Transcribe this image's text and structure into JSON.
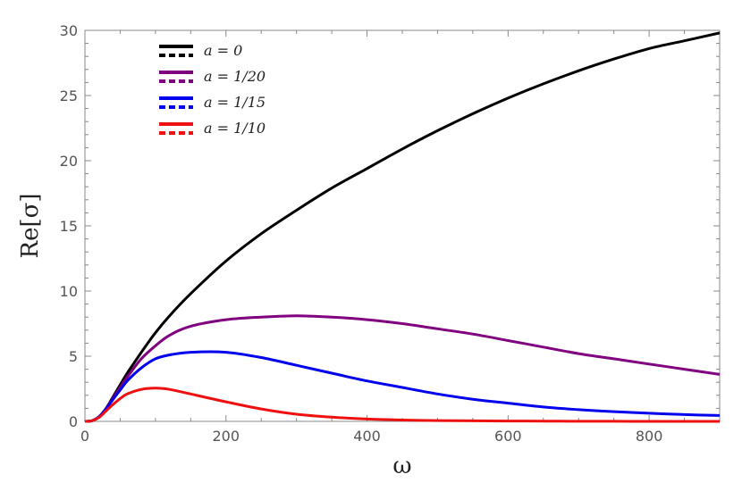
{
  "chart_data": {
    "type": "line",
    "xlabel": "ω",
    "ylabel": "Re[σ]",
    "xlim": [
      0,
      900
    ],
    "ylim": [
      0,
      30
    ],
    "xticks": [
      0,
      200,
      400,
      600,
      800
    ],
    "yticks": [
      0,
      5,
      10,
      15,
      20,
      25,
      30
    ],
    "grid": false,
    "legend_position": "top-left",
    "x": [
      0,
      10,
      20,
      30,
      40,
      50,
      60,
      80,
      100,
      120,
      150,
      200,
      250,
      300,
      350,
      400,
      450,
      500,
      550,
      600,
      650,
      700,
      750,
      800,
      850,
      900
    ],
    "series": [
      {
        "name": "a = 0",
        "color": "#000000",
        "values": [
          0,
          0.05,
          0.35,
          1.0,
          1.9,
          2.8,
          3.7,
          5.3,
          6.8,
          8.1,
          9.8,
          12.3,
          14.4,
          16.2,
          17.9,
          19.4,
          20.9,
          22.3,
          23.6,
          24.8,
          25.9,
          26.9,
          27.8,
          28.6,
          29.2,
          29.8
        ]
      },
      {
        "name": "a = 1/20",
        "color": "#800080",
        "values": [
          0,
          0.05,
          0.35,
          1.0,
          1.8,
          2.6,
          3.4,
          4.8,
          5.8,
          6.6,
          7.3,
          7.8,
          8.0,
          8.1,
          8.0,
          7.8,
          7.5,
          7.1,
          6.7,
          6.2,
          5.7,
          5.2,
          4.8,
          4.4,
          4.0,
          3.6
        ]
      },
      {
        "name": "a = 1/15",
        "color": "#0000ee",
        "values": [
          0,
          0.05,
          0.35,
          0.95,
          1.7,
          2.4,
          3.1,
          4.1,
          4.8,
          5.1,
          5.3,
          5.3,
          4.9,
          4.3,
          3.7,
          3.1,
          2.6,
          2.1,
          1.7,
          1.4,
          1.1,
          0.9,
          0.75,
          0.62,
          0.52,
          0.45
        ]
      },
      {
        "name": "a = 1/10",
        "color": "#ee1111",
        "values": [
          0,
          0.05,
          0.3,
          0.8,
          1.3,
          1.75,
          2.1,
          2.45,
          2.55,
          2.45,
          2.1,
          1.5,
          0.95,
          0.55,
          0.32,
          0.18,
          0.1,
          0.06,
          0.04,
          0.03,
          0.02,
          0.01,
          0.01,
          0.0,
          0.0,
          0.0
        ]
      }
    ]
  }
}
